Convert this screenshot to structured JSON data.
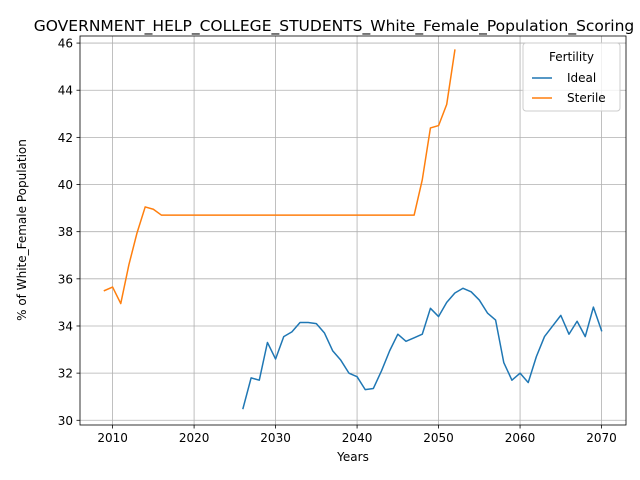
{
  "chart_data": {
    "type": "line",
    "title": "GOVERNMENT_HELP_COLLEGE_STUDENTS_White_Female_Population_Scoring",
    "xlabel": "Years",
    "ylabel": "% of White_Female Population",
    "xlim": [
      2006,
      2073
    ],
    "ylim": [
      29.8,
      46.3
    ],
    "xticks": [
      2010,
      2020,
      2030,
      2040,
      2050,
      2060,
      2070
    ],
    "yticks": [
      30,
      32,
      34,
      36,
      38,
      40,
      42,
      44,
      46
    ],
    "grid": true,
    "legend": {
      "title": "Fertility",
      "position": "top-right"
    },
    "series": [
      {
        "name": "Ideal",
        "color": "#1f77b4",
        "x": [
          2026,
          2027,
          2028,
          2029,
          2030,
          2031,
          2032,
          2033,
          2034,
          2035,
          2036,
          2037,
          2038,
          2039,
          2040,
          2041,
          2042,
          2043,
          2044,
          2045,
          2046,
          2047,
          2048,
          2049,
          2050,
          2051,
          2052,
          2053,
          2054,
          2055,
          2056,
          2057,
          2058,
          2059,
          2060,
          2061,
          2062,
          2063,
          2064,
          2065,
          2066,
          2067,
          2068,
          2069,
          2070
        ],
        "y": [
          30.5,
          31.8,
          31.7,
          33.3,
          32.6,
          33.55,
          33.75,
          34.15,
          34.15,
          34.1,
          33.7,
          32.95,
          32.55,
          32.0,
          31.85,
          31.3,
          31.35,
          32.1,
          32.95,
          33.65,
          33.35,
          33.5,
          33.65,
          34.75,
          34.4,
          35.0,
          35.4,
          35.6,
          35.45,
          35.1,
          34.55,
          34.25,
          32.45,
          31.7,
          32.0,
          31.6,
          32.7,
          33.55,
          34.0,
          34.45,
          33.65,
          34.2,
          33.55,
          34.8,
          33.8
        ]
      },
      {
        "name": "Sterile",
        "color": "#ff7f0e",
        "x": [
          2009,
          2010,
          2011,
          2012,
          2013,
          2014,
          2015,
          2016,
          2017,
          2018,
          2019,
          2020,
          2021,
          2022,
          2023,
          2024,
          2025,
          2026,
          2027,
          2028,
          2029,
          2030,
          2031,
          2032,
          2033,
          2034,
          2035,
          2036,
          2037,
          2038,
          2039,
          2040,
          2041,
          2042,
          2043,
          2044,
          2045,
          2046,
          2047,
          2048,
          2049,
          2050,
          2051,
          2052
        ],
        "y": [
          35.5,
          35.65,
          34.95,
          36.6,
          37.95,
          39.05,
          38.95,
          38.7,
          38.7,
          38.7,
          38.7,
          38.7,
          38.7,
          38.7,
          38.7,
          38.7,
          38.7,
          38.7,
          38.7,
          38.7,
          38.7,
          38.7,
          38.7,
          38.7,
          38.7,
          38.7,
          38.7,
          38.7,
          38.7,
          38.7,
          38.7,
          38.7,
          38.7,
          38.7,
          38.7,
          38.7,
          38.7,
          38.7,
          38.7,
          40.2,
          42.4,
          42.5,
          43.4,
          45.7
        ]
      }
    ]
  }
}
